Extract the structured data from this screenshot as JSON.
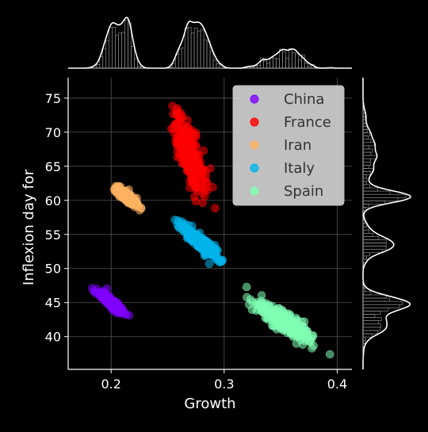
{
  "chart_data": {
    "type": "scatter",
    "title": "",
    "xlabel": "Growth",
    "ylabel": "Inflexion day for",
    "xlim": [
      0.162,
      0.413
    ],
    "ylim": [
      35.2,
      78.0
    ],
    "xticks": [
      0.2,
      0.3,
      0.4
    ],
    "xtick_labels": [
      "0.2",
      "0.3",
      "0.4"
    ],
    "yticks": [
      40,
      45,
      50,
      55,
      60,
      65,
      70,
      75
    ],
    "ytick_labels": [
      "40",
      "45",
      "50",
      "55",
      "60",
      "65",
      "70",
      "75"
    ],
    "grid": true,
    "legend_position": "top-right",
    "marginal_x": "histogram with density curve",
    "marginal_y": "histogram with density curve",
    "series": [
      {
        "name": "China",
        "color": "#8000ff",
        "center": [
          0.2,
          45.0
        ],
        "x_range": [
          0.186,
          0.217
        ],
        "y_range": [
          42.9,
          47.1
        ]
      },
      {
        "name": "France",
        "color": "#ff0000",
        "center": [
          0.27,
          66.6
        ],
        "x_range": [
          0.254,
          0.289
        ],
        "y_range": [
          57.8,
          74.2
        ]
      },
      {
        "name": "Iran",
        "color": "#ffb360",
        "center": [
          0.214,
          60.5
        ],
        "x_range": [
          0.202,
          0.226
        ],
        "y_range": [
          58.8,
          62.0
        ]
      },
      {
        "name": "Italy",
        "color": "#00b5eb",
        "center": [
          0.28,
          53.7
        ],
        "x_range": [
          0.261,
          0.305
        ],
        "y_range": [
          50.2,
          56.9
        ]
      },
      {
        "name": "Spain",
        "color": "#80ffb4",
        "center": [
          0.355,
          41.9
        ],
        "x_range": [
          0.322,
          0.397
        ],
        "y_range": [
          37.8,
          45.9
        ]
      }
    ]
  }
}
